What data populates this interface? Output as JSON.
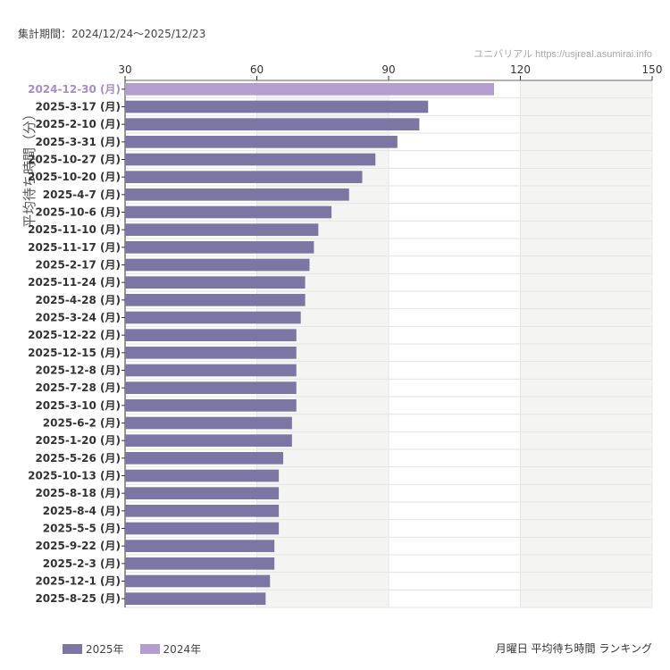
{
  "period_label": "集計期間：2024/12/24〜2025/12/23",
  "credit": "ユニバリアル  https://usjreal.asumirai.info",
  "ranking_title": "月曜日 平均待ち時間 ランキング",
  "colors": {
    "y2025": "#7b76a3",
    "y2024": "#b59dd0",
    "band": "#f4f5f3"
  },
  "chart_data": {
    "type": "bar",
    "orientation": "horizontal",
    "ylabel": "平均待ち時間（分）",
    "xlim": [
      30,
      150
    ],
    "xticks": [
      30,
      60,
      90,
      120,
      150
    ],
    "legend": [
      {
        "name": "2025年",
        "color": "#7b76a3"
      },
      {
        "name": "2024年",
        "color": "#b59dd0"
      }
    ],
    "legend_position": "bottom-left",
    "categories": [
      "2024-12-30 (月)",
      "2025-3-17 (月)",
      "2025-2-10 (月)",
      "2025-3-31 (月)",
      "2025-10-27 (月)",
      "2025-10-20 (月)",
      "2025-4-7 (月)",
      "2025-10-6 (月)",
      "2025-11-10 (月)",
      "2025-11-17 (月)",
      "2025-2-17 (月)",
      "2025-11-24 (月)",
      "2025-4-28 (月)",
      "2025-3-24 (月)",
      "2025-12-22 (月)",
      "2025-12-15 (月)",
      "2025-12-8 (月)",
      "2025-7-28 (月)",
      "2025-3-10 (月)",
      "2025-6-2 (月)",
      "2025-1-20 (月)",
      "2025-5-26 (月)",
      "2025-10-13 (月)",
      "2025-8-18 (月)",
      "2025-8-4 (月)",
      "2025-5-5 (月)",
      "2025-9-22 (月)",
      "2025-2-3 (月)",
      "2025-12-1 (月)",
      "2025-8-25 (月)"
    ],
    "values": [
      114,
      99,
      97,
      92,
      87,
      84,
      81,
      77,
      74,
      73,
      72,
      71,
      71,
      70,
      69,
      69,
      69,
      69,
      69,
      68,
      68,
      66,
      65,
      65,
      65,
      65,
      64,
      64,
      63,
      62
    ],
    "years": [
      2024,
      2025,
      2025,
      2025,
      2025,
      2025,
      2025,
      2025,
      2025,
      2025,
      2025,
      2025,
      2025,
      2025,
      2025,
      2025,
      2025,
      2025,
      2025,
      2025,
      2025,
      2025,
      2025,
      2025,
      2025,
      2025,
      2025,
      2025,
      2025,
      2025
    ]
  }
}
